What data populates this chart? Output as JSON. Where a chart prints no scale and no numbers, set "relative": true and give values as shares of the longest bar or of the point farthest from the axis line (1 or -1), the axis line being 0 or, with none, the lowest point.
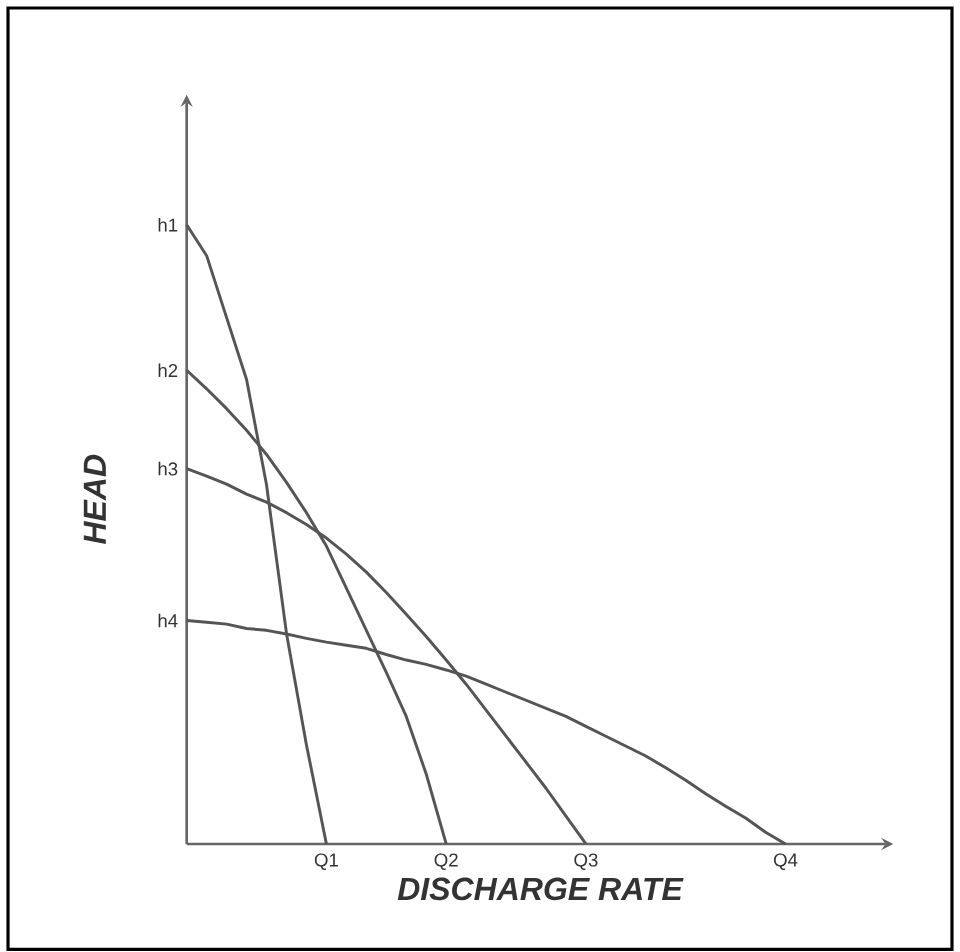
{
  "chart_data": {
    "type": "line",
    "xlabel": "DISCHARGE RATE",
    "ylabel": "HEAD",
    "relative": true,
    "categories": [
      null,
      null,
      null,
      null,
      null,
      null,
      null,
      "Q1",
      null,
      null,
      null,
      null,
      null,
      "Q2",
      null,
      null,
      null,
      null,
      null,
      null,
      "Q3",
      null,
      null,
      null,
      null,
      null,
      null,
      null,
      null,
      null,
      "Q4",
      null,
      null,
      null,
      null,
      null
    ],
    "annotations": [
      "h1",
      "h2",
      "h3",
      "h4"
    ],
    "marker": "none",
    "line_style": "solid",
    "series": [
      {
        "color": "#555555",
        "values": [
          1,
          0.95,
          0.85,
          0.75,
          0.58,
          0.34,
          0.16,
          0,
          null,
          null,
          null,
          null,
          null,
          null,
          null,
          null,
          null,
          null,
          null,
          null,
          null,
          null,
          null,
          null,
          null,
          null,
          null,
          null,
          null,
          null,
          null,
          null,
          null,
          null,
          null,
          null
        ]
      },
      {
        "color": "#555555",
        "values": [
          0.765,
          0.735,
          0.703,
          0.668,
          0.629,
          0.584,
          0.535,
          0.481,
          0.413,
          0.345,
          0.277,
          0.206,
          0.113,
          0,
          null,
          null,
          null,
          null,
          null,
          null,
          null,
          null,
          null,
          null,
          null,
          null,
          null,
          null,
          null,
          null,
          null,
          null,
          null,
          null,
          null,
          null
        ]
      },
      {
        "color": "#555555",
        "values": [
          0.606,
          0.594,
          0.581,
          0.565,
          0.552,
          0.535,
          0.516,
          0.494,
          0.468,
          0.439,
          0.406,
          0.371,
          0.335,
          0.297,
          0.258,
          0.216,
          0.174,
          0.132,
          0.09,
          0.045,
          0,
          null,
          null,
          null,
          null,
          null,
          null,
          null,
          null,
          null,
          null,
          null,
          null,
          null,
          null,
          null
        ]
      },
      {
        "color": "#555555",
        "values": [
          0.361,
          0.358,
          0.355,
          0.348,
          0.345,
          0.339,
          0.332,
          0.326,
          0.321,
          0.316,
          0.306,
          0.297,
          0.29,
          0.281,
          0.271,
          0.258,
          0.245,
          0.232,
          0.219,
          0.206,
          0.19,
          0.174,
          0.158,
          0.142,
          0.123,
          0.103,
          0.081,
          0.061,
          0.042,
          0.019,
          0,
          null,
          null,
          null,
          null,
          null
        ]
      }
    ]
  }
}
